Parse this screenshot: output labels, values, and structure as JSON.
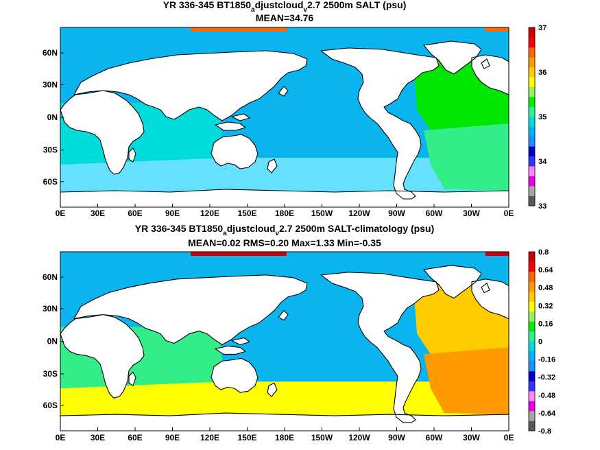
{
  "panels": [
    {
      "title_prefix": "YR 336-345 BT1850",
      "title_sub1": "a",
      "title_mid": "djustcloud",
      "title_sub2": "v",
      "title_suffix": "2.7 2500m SALT (psu)",
      "stats": "MEAN=34.76",
      "colorbar_labels": [
        "37",
        "36",
        "35",
        "34",
        "33"
      ],
      "colorbar_colors": [
        "#595959",
        "#a6a6a6",
        "#e600e6",
        "#ff88ff",
        "#3333ff",
        "#0000cc",
        "#1e90ff",
        "#00b3ff",
        "#00dddd",
        "#33ee99",
        "#00ee00",
        "#99ee66",
        "#ffff00",
        "#ffcc00",
        "#ff9900",
        "#ff6600",
        "#ff0000",
        "#cc0000"
      ],
      "fill_colors": {
        "ocean": "#0ab4ee",
        "southern": "#66e0ff",
        "indian": "#00dcdc",
        "atlantic": "#00e600",
        "atlantic_south": "#33ee88",
        "high": "#ff6600"
      }
    },
    {
      "title_prefix": "YR 336-345 BT1850",
      "title_sub1": "a",
      "title_mid": "djustcloud",
      "title_sub2": "v",
      "title_suffix": "2.7 2500m SALT-climatology (psu)",
      "stats": "MEAN=0.02   RMS=0.20   Max=1.33   Min=-0.35",
      "colorbar_labels": [
        "0.8",
        "0.64",
        "0.48",
        "0.32",
        "0.16",
        "0",
        "-0.16",
        "-0.32",
        "-0.48",
        "-0.64",
        "-0.8"
      ],
      "colorbar_colors": [
        "#595959",
        "#a6a6a6",
        "#e600e6",
        "#ff88ff",
        "#3333ff",
        "#0000cc",
        "#1e90ff",
        "#00b3ff",
        "#00dddd",
        "#33ee99",
        "#00ee00",
        "#99ee66",
        "#ffff00",
        "#ffcc00",
        "#ff9900",
        "#ff6600",
        "#ff0000",
        "#cc0000"
      ],
      "fill_colors": {
        "ocean": "#0ab4ee",
        "southern": "#ffff00",
        "indian": "#33ee88",
        "atlantic": "#ffcc00",
        "atlantic_south": "#ff9900",
        "high": "#cc0000"
      }
    }
  ],
  "x_ticks": [
    "0E",
    "30E",
    "60E",
    "90E",
    "120E",
    "150E",
    "180E",
    "150W",
    "120W",
    "90W",
    "60W",
    "30W",
    "0E"
  ],
  "y_ticks": [
    "60N",
    "30N",
    "0N",
    "30S",
    "60S"
  ]
}
